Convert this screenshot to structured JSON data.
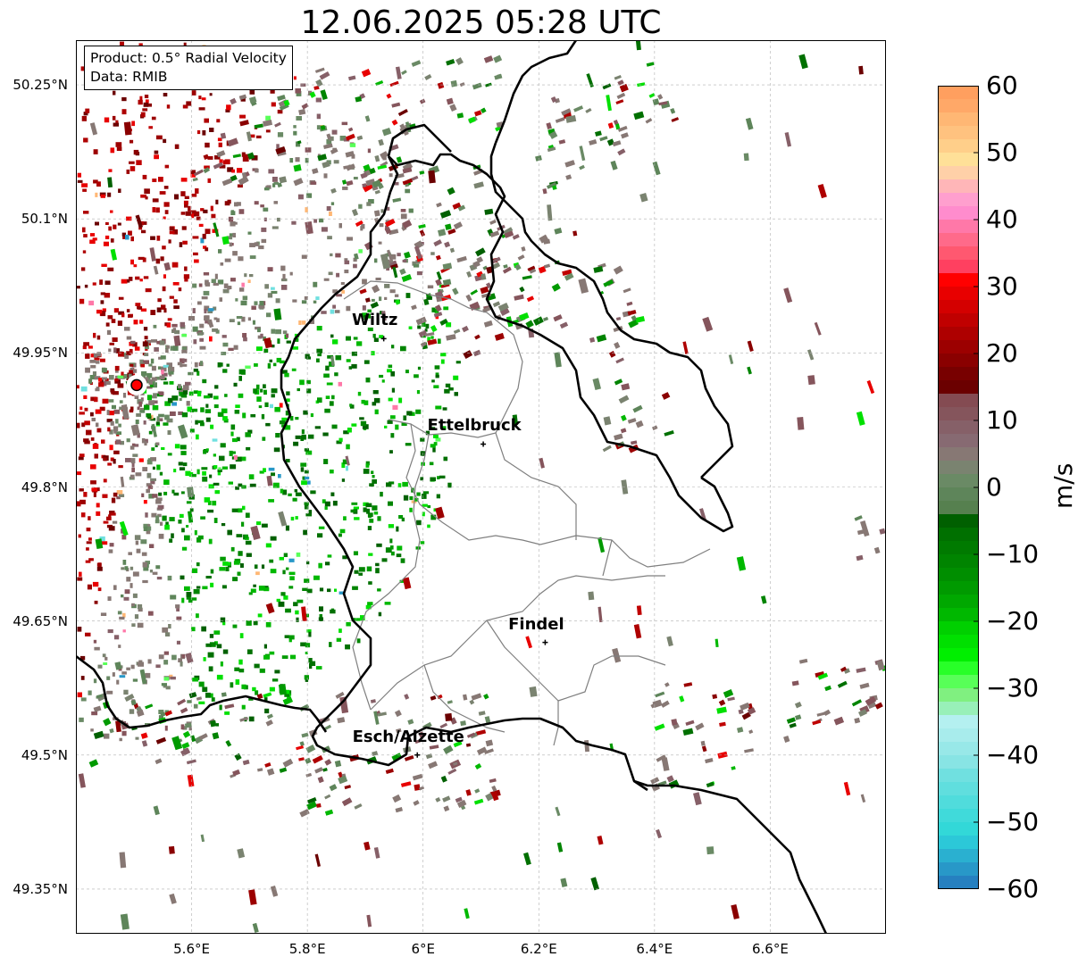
{
  "title": "12.06.2025 05:28 UTC",
  "info_box": {
    "line1": "Product: 0.5° Radial Velocity",
    "line2": "Data: RMIB"
  },
  "map": {
    "lon_range": [
      5.4,
      6.8
    ],
    "lat_range": [
      49.3,
      50.3
    ],
    "lat_ticks": [
      {
        "value": 50.25,
        "label": "50.25°N"
      },
      {
        "value": 50.1,
        "label": "50.1°N"
      },
      {
        "value": 49.95,
        "label": "49.95°N"
      },
      {
        "value": 49.8,
        "label": "49.8°N"
      },
      {
        "value": 49.65,
        "label": "49.65°N"
      },
      {
        "value": 49.5,
        "label": "49.5°N"
      },
      {
        "value": 49.35,
        "label": "49.35°N"
      }
    ],
    "lon_ticks": [
      {
        "value": 5.6,
        "label": "5.6°E"
      },
      {
        "value": 5.8,
        "label": "5.8°E"
      },
      {
        "value": 6.0,
        "label": "6°E"
      },
      {
        "value": 6.2,
        "label": "6.2°E"
      },
      {
        "value": 6.4,
        "label": "6.4°E"
      },
      {
        "value": 6.6,
        "label": "6.6°E"
      }
    ],
    "radar_site": {
      "lon": 5.505,
      "lat": 49.914
    },
    "cities": [
      {
        "name": "Wiltz",
        "lon": 5.932,
        "lat": 49.966
      },
      {
        "name": "Ettelbruck",
        "lon": 6.104,
        "lat": 49.848
      },
      {
        "name": "Findel",
        "lon": 6.211,
        "lat": 49.626
      },
      {
        "name": "Esch/Alzette",
        "lon": 5.99,
        "lat": 49.5
      }
    ]
  },
  "colorbar": {
    "label": "m/s",
    "vmin": -60,
    "vmax": 60,
    "ticks": [
      {
        "value": 60,
        "label": "60"
      },
      {
        "value": 50,
        "label": "50"
      },
      {
        "value": 40,
        "label": "40"
      },
      {
        "value": 30,
        "label": "30"
      },
      {
        "value": 20,
        "label": "20"
      },
      {
        "value": 10,
        "label": "10"
      },
      {
        "value": 0,
        "label": "0"
      },
      {
        "value": -10,
        "label": "−10"
      },
      {
        "value": -20,
        "label": "−20"
      },
      {
        "value": -30,
        "label": "−30"
      },
      {
        "value": -40,
        "label": "−40"
      },
      {
        "value": -50,
        "label": "−50"
      },
      {
        "value": -60,
        "label": "−60"
      }
    ],
    "colors_top_to_bottom": [
      "#ff9f5f",
      "#ffa868",
      "#ffb774",
      "#ffc27f",
      "#ffcf8a",
      "#ffe098",
      "#ffd0a8",
      "#ffb6b8",
      "#ff9fce",
      "#ff8ccd",
      "#ff78a8",
      "#ff6a8a",
      "#ff5870",
      "#ff4060",
      "#ff0000",
      "#e80000",
      "#d40000",
      "#c00000",
      "#ae0000",
      "#9c0000",
      "#8a0000",
      "#780000",
      "#6b0000",
      "#844b52",
      "#85555c",
      "#866068",
      "#876a72",
      "#877874",
      "#7a8370",
      "#6a8a65",
      "#5e855a",
      "#56804f",
      "#006000",
      "#007000",
      "#007a00",
      "#008400",
      "#008e00",
      "#009a00",
      "#00a800",
      "#00b800",
      "#00d000",
      "#00e000",
      "#00ef00",
      "#28ff28",
      "#58ff58",
      "#80f080",
      "#98f0b8",
      "#b4f0f0",
      "#a8ecec",
      "#98e8e8",
      "#88e4e4",
      "#70e0e0",
      "#60dede",
      "#50dcdc",
      "#40dada",
      "#32d8d8",
      "#2cc8d8",
      "#2ab0d0",
      "#2898c8",
      "#2680c0"
    ]
  },
  "colors": {
    "border_national": "#000000",
    "border_district": "#7f7f7f",
    "grid": "#b0b0b0",
    "radar_marker": "#ff0000"
  }
}
